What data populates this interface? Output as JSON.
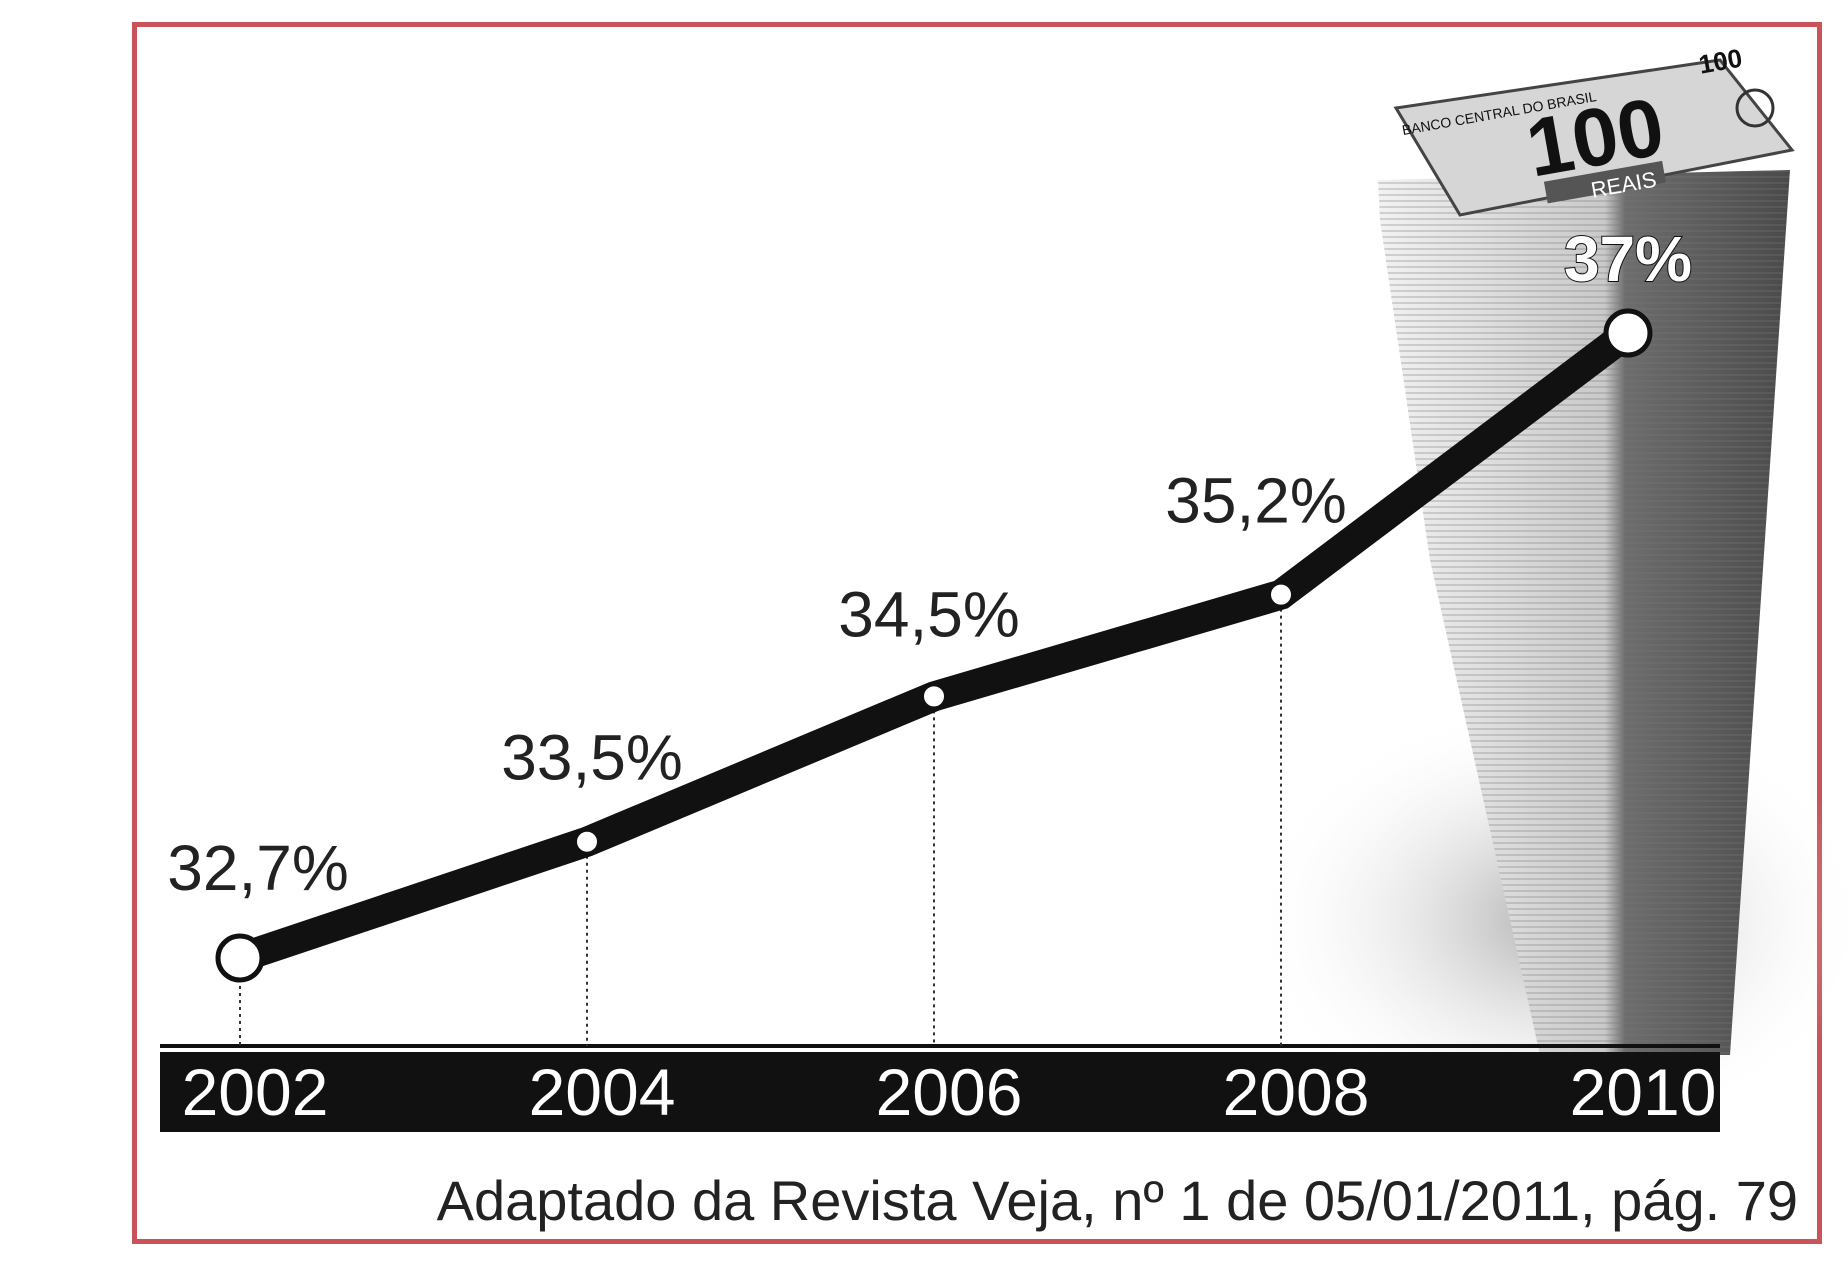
{
  "chart_data": {
    "type": "line",
    "x": [
      "2002",
      "2004",
      "2006",
      "2008",
      "2010"
    ],
    "series": [
      {
        "values": [
          32.7,
          33.5,
          34.5,
          35.2,
          37
        ]
      }
    ],
    "data_labels": [
      "32,7%",
      "33,5%",
      "34,5%",
      "35,2%",
      "37%"
    ],
    "source": "Adaptado da Revista Veja, nº 1 de 05/01/2011, pág. 79",
    "illustration": {
      "note_top": "100",
      "note_center": "100",
      "note_currency": "REAIS",
      "note_bank": "BANCO CENTRAL DO BRASIL"
    },
    "colors": {
      "line": "#111111",
      "axis_band": "#111111",
      "frame": "#c8545a"
    }
  }
}
